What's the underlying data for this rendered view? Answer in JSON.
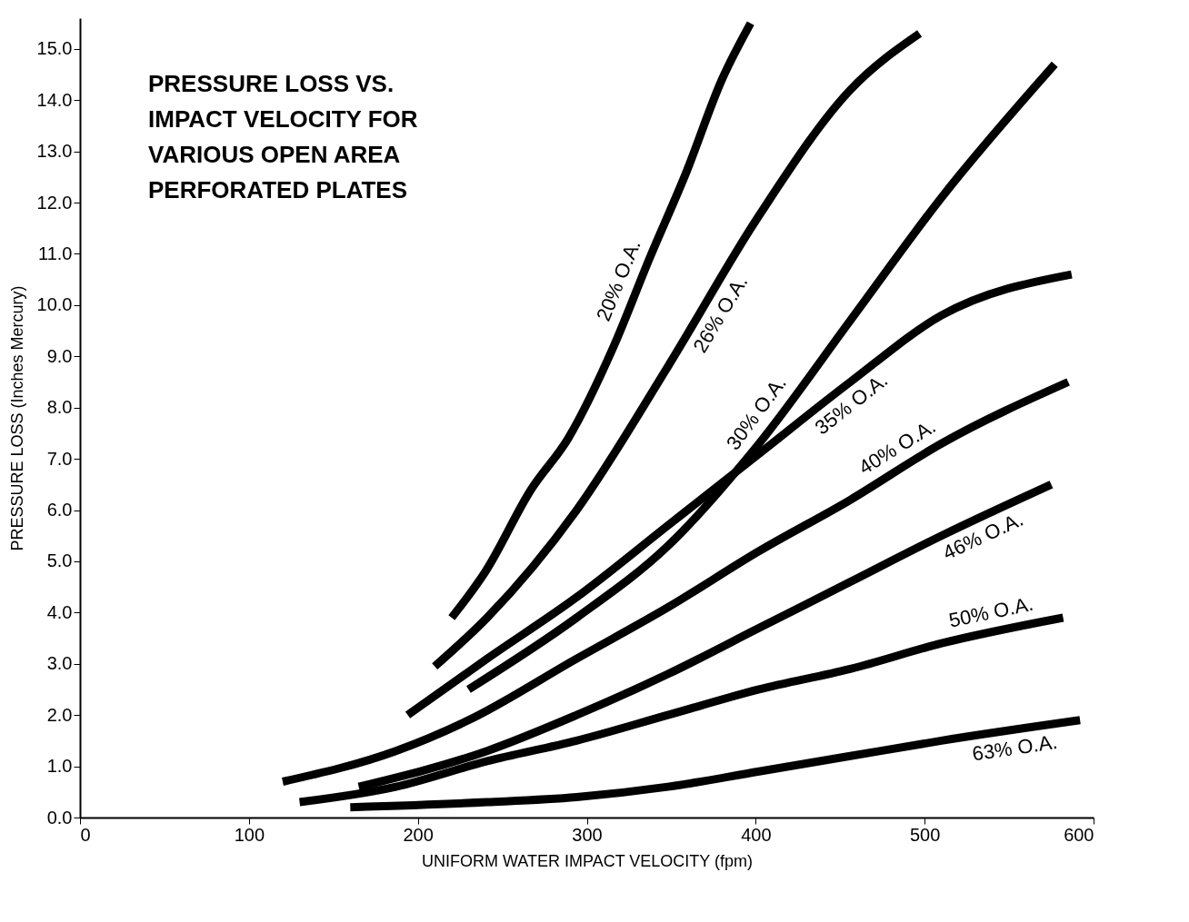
{
  "chart_data": {
    "type": "line",
    "title": "PRESSURE LOSS VS. IMPACT VELOCITY FOR VARIOUS OPEN AREA PERFORATED PLATES",
    "xlabel": "UNIFORM WATER IMPACT VELOCITY (fpm)",
    "ylabel": "PRESSURE LOSS (Inches Mercury)",
    "xlim": [
      0,
      600
    ],
    "xticks": [
      0,
      100,
      200,
      300,
      400,
      500,
      600
    ],
    "ylim": [
      0,
      15.6
    ],
    "yticks": [
      {
        "value": 0,
        "label": "0.0"
      },
      {
        "value": 1,
        "label": "1.0"
      },
      {
        "value": 2,
        "label": "2.0"
      },
      {
        "value": 3,
        "label": "3.0"
      },
      {
        "value": 4,
        "label": "4.0"
      },
      {
        "value": 5,
        "label": "5.0"
      },
      {
        "value": 6,
        "label": "6.0"
      },
      {
        "value": 7,
        "label": "7.0"
      },
      {
        "value": 8,
        "label": "8.0"
      },
      {
        "value": 9,
        "label": "9.0"
      },
      {
        "value": 10,
        "label": "10.0"
      },
      {
        "value": 11,
        "label": "11.0"
      },
      {
        "value": 12,
        "label": "12.0"
      },
      {
        "value": 13,
        "label": "13.0"
      },
      {
        "value": 14,
        "label": "14.0"
      },
      {
        "value": 15,
        "label": "15.0"
      }
    ],
    "grid": false,
    "legend": false,
    "marker": "none",
    "line_style": "solid",
    "series": [
      {
        "name": "20% O.A.",
        "color": "#000000",
        "x": [
          220,
          240,
          267,
          289,
          316,
          337,
          359,
          380,
          397
        ],
        "values": [
          3.9,
          4.8,
          6.4,
          7.4,
          9.2,
          10.9,
          12.6,
          14.4,
          15.5
        ]
      },
      {
        "name": "26% O.A.",
        "color": "#000000",
        "x": [
          210,
          241,
          294,
          348,
          402,
          456,
          497
        ],
        "values": [
          2.95,
          3.9,
          6.0,
          8.8,
          11.75,
          14.2,
          15.3
        ]
      },
      {
        "name": "30% O.A.",
        "color": "#000000",
        "x": [
          230,
          294,
          348,
          402,
          456,
          510,
          577
        ],
        "values": [
          2.5,
          3.9,
          5.3,
          7.3,
          9.7,
          12.1,
          14.7
        ]
      },
      {
        "name": "35% O.A.",
        "color": "#000000",
        "x": [
          194,
          241,
          294,
          348,
          402,
          456,
          510,
          587
        ],
        "values": [
          2.0,
          3.1,
          4.3,
          5.7,
          7.1,
          8.5,
          9.8,
          10.6
        ]
      },
      {
        "name": "40% O.A.",
        "color": "#000000",
        "x": [
          120,
          187,
          230,
          294,
          348,
          402,
          456,
          510,
          585
        ],
        "values": [
          0.7,
          1.3,
          1.9,
          3.1,
          4.1,
          5.2,
          6.2,
          7.3,
          8.5
        ]
      },
      {
        "name": "46% O.A.",
        "color": "#000000",
        "x": [
          165,
          241,
          294,
          348,
          402,
          456,
          510,
          575
        ],
        "values": [
          0.6,
          1.3,
          2.0,
          2.8,
          3.7,
          4.6,
          5.5,
          6.5
        ]
      },
      {
        "name": "50% O.A.",
        "color": "#000000",
        "x": [
          130,
          187,
          241,
          294,
          348,
          402,
          456,
          510,
          582
        ],
        "values": [
          0.3,
          0.6,
          1.1,
          1.5,
          2.0,
          2.5,
          2.9,
          3.4,
          3.9
        ]
      },
      {
        "name": "63% O.A.",
        "color": "#000000",
        "x": [
          160,
          241,
          294,
          348,
          402,
          456,
          510,
          592
        ],
        "values": [
          0.2,
          0.3,
          0.4,
          0.6,
          0.9,
          1.2,
          1.5,
          1.9
        ]
      }
    ]
  }
}
